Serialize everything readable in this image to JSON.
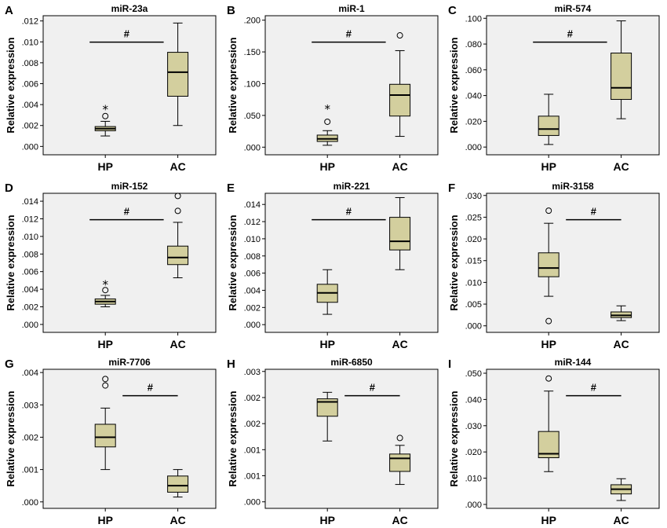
{
  "chart_data": [
    {
      "letter": "A",
      "type": "box",
      "title": "miR-23a",
      "ylabel": "Relative expression",
      "yticks": [
        ".000",
        ".002",
        ".004",
        ".006",
        ".008",
        ".010",
        ".012"
      ],
      "ylim": [
        -0.0008,
        0.0125
      ],
      "categories": [
        "HP",
        "AC"
      ],
      "significance": "#",
      "boxes": [
        {
          "min": 0.001,
          "q1": 0.0015,
          "median": 0.0017,
          "q3": 0.0019,
          "max": 0.0024,
          "outliers": [
            {
              "v": 0.0029,
              "m": "o"
            },
            {
              "v": 0.0036,
              "m": "*"
            }
          ]
        },
        {
          "min": 0.002,
          "q1": 0.0048,
          "median": 0.0071,
          "q3": 0.009,
          "max": 0.0118,
          "outliers": []
        }
      ]
    },
    {
      "letter": "B",
      "type": "box",
      "title": "miR-1",
      "ylabel": "Relative expression",
      "yticks": [
        ".000",
        ".050",
        ".100",
        ".150",
        ".200"
      ],
      "ylim": [
        -0.012,
        0.207
      ],
      "categories": [
        "HP",
        "AC"
      ],
      "significance": "#",
      "boxes": [
        {
          "min": 0.003,
          "q1": 0.009,
          "median": 0.013,
          "q3": 0.019,
          "max": 0.026,
          "outliers": [
            {
              "v": 0.04,
              "m": "o"
            },
            {
              "v": 0.061,
              "m": "*"
            }
          ]
        },
        {
          "min": 0.017,
          "q1": 0.049,
          "median": 0.082,
          "q3": 0.099,
          "max": 0.152,
          "outliers": [
            {
              "v": 0.176,
              "m": "o"
            }
          ]
        }
      ]
    },
    {
      "letter": "C",
      "type": "box",
      "title": "miR-574",
      "ylabel": "Relative expression",
      "yticks": [
        ".000",
        ".020",
        ".040",
        ".060",
        ".080",
        ".100"
      ],
      "ylim": [
        -0.006,
        0.102
      ],
      "categories": [
        "HP",
        "AC"
      ],
      "significance": "#",
      "boxes": [
        {
          "min": 0.002,
          "q1": 0.009,
          "median": 0.014,
          "q3": 0.024,
          "max": 0.041,
          "outliers": []
        },
        {
          "min": 0.022,
          "q1": 0.037,
          "median": 0.046,
          "q3": 0.073,
          "max": 0.098,
          "outliers": []
        }
      ]
    },
    {
      "letter": "D",
      "type": "box",
      "title": "miR-152",
      "ylabel": "Relative expression",
      "yticks": [
        ".000",
        ".002",
        ".004",
        ".006",
        ".008",
        ".010",
        ".012",
        ".014"
      ],
      "ylim": [
        -0.0009,
        0.0149
      ],
      "categories": [
        "HP",
        "AC"
      ],
      "significance": "#",
      "boxes": [
        {
          "min": 0.002,
          "q1": 0.0023,
          "median": 0.0026,
          "q3": 0.0029,
          "max": 0.0033,
          "outliers": [
            {
              "v": 0.0039,
              "m": "o"
            },
            {
              "v": 0.0046,
              "m": "*"
            }
          ]
        },
        {
          "min": 0.0053,
          "q1": 0.0068,
          "median": 0.0076,
          "q3": 0.0089,
          "max": 0.0116,
          "outliers": [
            {
              "v": 0.0129,
              "m": "o"
            },
            {
              "v": 0.0146,
              "m": "o"
            }
          ]
        }
      ]
    },
    {
      "letter": "E",
      "type": "box",
      "title": "miR-221",
      "ylabel": "Relative expression",
      "yticks": [
        ".000",
        ".002",
        ".004",
        ".006",
        ".008",
        ".010",
        ".012",
        ".014"
      ],
      "ylim": [
        -0.0009,
        0.0153
      ],
      "categories": [
        "HP",
        "AC"
      ],
      "significance": "#",
      "boxes": [
        {
          "min": 0.0012,
          "q1": 0.0026,
          "median": 0.0037,
          "q3": 0.0047,
          "max": 0.0064,
          "outliers": []
        },
        {
          "min": 0.0064,
          "q1": 0.0087,
          "median": 0.0097,
          "q3": 0.0125,
          "max": 0.0148,
          "outliers": []
        }
      ]
    },
    {
      "letter": "F",
      "type": "box",
      "title": "miR-3158",
      "ylabel": "Relative expression",
      "yticks": [
        ".000",
        ".005",
        ".010",
        ".015",
        ".020",
        ".025",
        ".030"
      ],
      "ylim": [
        -0.0015,
        0.0305
      ],
      "categories": [
        "HP",
        "AC"
      ],
      "significance": "#",
      "boxes": [
        {
          "min": 0.0068,
          "q1": 0.0113,
          "median": 0.0133,
          "q3": 0.0168,
          "max": 0.0236,
          "outliers": [
            {
              "v": 0.0265,
              "m": "o"
            },
            {
              "v": 0.0011,
              "m": "o"
            }
          ]
        },
        {
          "min": 0.0012,
          "q1": 0.0019,
          "median": 0.0024,
          "q3": 0.0032,
          "max": 0.0046,
          "outliers": []
        }
      ]
    },
    {
      "letter": "G",
      "type": "box",
      "title": "miR-7706",
      "ylabel": "Relative expression",
      "yticks": [
        ".000",
        ".001",
        ".002",
        ".003",
        ".004"
      ],
      "ylim": [
        -0.0002,
        0.0041
      ],
      "categories": [
        "HP",
        "AC"
      ],
      "significance": "#",
      "boxes": [
        {
          "min": 0.001,
          "q1": 0.0017,
          "median": 0.002,
          "q3": 0.0024,
          "max": 0.0029,
          "outliers": [
            {
              "v": 0.0036,
              "m": "o"
            },
            {
              "v": 0.0038,
              "m": "o"
            }
          ]
        },
        {
          "min": 0.00015,
          "q1": 0.0003,
          "median": 0.0005,
          "q3": 0.0008,
          "max": 0.001,
          "outliers": []
        }
      ]
    },
    {
      "letter": "H",
      "type": "box",
      "title": "miR-6850",
      "ylabel": "Relative expression",
      "yticks": [
        ".000",
        ".001",
        ".001",
        ".002",
        ".002",
        ".003"
      ],
      "ylim": [
        -0.00015,
        0.00305
      ],
      "categories": [
        "HP",
        "AC"
      ],
      "significance": "#",
      "boxes": [
        {
          "min": 0.0014,
          "q1": 0.00197,
          "median": 0.0023,
          "q3": 0.00237,
          "max": 0.00252,
          "outliers": []
        },
        {
          "min": 0.0004,
          "q1": 0.0007,
          "median": 0.001,
          "q3": 0.0011,
          "max": 0.0013,
          "outliers": [
            {
              "v": 0.00147,
              "m": "o"
            }
          ]
        }
      ]
    },
    {
      "letter": "I",
      "type": "box",
      "title": "miR-144",
      "ylabel": "Relative expression",
      "yticks": [
        ".000",
        ".010",
        ".020",
        ".030",
        ".040",
        ".050"
      ],
      "ylim": [
        -0.0015,
        0.0515
      ],
      "categories": [
        "HP",
        "AC"
      ],
      "significance": "#",
      "boxes": [
        {
          "min": 0.0125,
          "q1": 0.0178,
          "median": 0.0193,
          "q3": 0.0278,
          "max": 0.0432,
          "outliers": [
            {
              "v": 0.048,
              "m": "o"
            }
          ]
        },
        {
          "min": 0.0015,
          "q1": 0.004,
          "median": 0.0058,
          "q3": 0.0075,
          "max": 0.0098,
          "outliers": []
        }
      ]
    }
  ]
}
